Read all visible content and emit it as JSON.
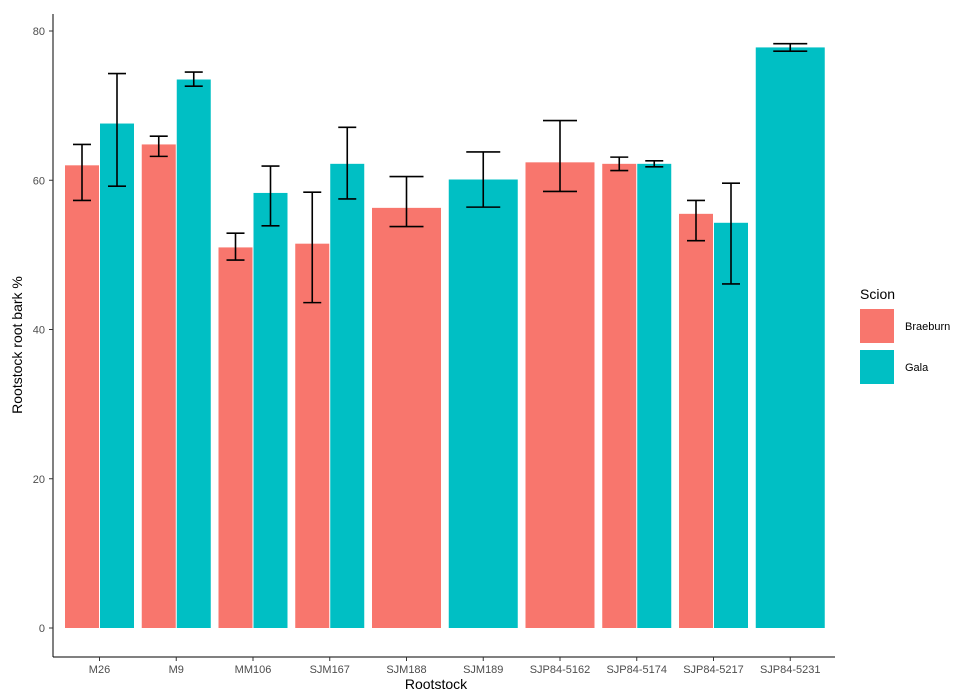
{
  "chart_data": {
    "type": "bar",
    "xlabel": "Rootstock",
    "ylabel": "Rootstock root bark %",
    "ylim": [
      0,
      80
    ],
    "yticks": [
      0,
      20,
      40,
      60,
      80
    ],
    "grid": false,
    "legend": {
      "title": "Scion",
      "position": "right"
    },
    "categories": [
      "M26",
      "M9",
      "MM106",
      "SJM167",
      "SJM188",
      "SJM189",
      "SJP84-5162",
      "SJP84-5174",
      "SJP84-5217",
      "SJP84-5231"
    ],
    "series": [
      {
        "name": "Braeburn",
        "color": "#F8766D",
        "values": [
          62.0,
          64.8,
          51.0,
          51.5,
          56.3,
          null,
          62.4,
          62.2,
          55.5,
          null
        ],
        "err_low": [
          57.3,
          63.2,
          49.3,
          43.6,
          53.8,
          null,
          58.5,
          61.3,
          51.9,
          null
        ],
        "err_high": [
          64.8,
          65.9,
          52.9,
          58.4,
          60.5,
          null,
          68.0,
          63.1,
          57.3,
          null
        ]
      },
      {
        "name": "Gala",
        "color": "#00BFC4",
        "values": [
          67.6,
          73.5,
          58.3,
          62.2,
          null,
          60.1,
          null,
          62.2,
          54.3,
          77.8
        ],
        "err_low": [
          59.2,
          72.6,
          53.9,
          57.5,
          null,
          56.4,
          null,
          61.8,
          46.1,
          77.3
        ],
        "err_high": [
          74.3,
          74.5,
          61.9,
          67.1,
          null,
          63.8,
          null,
          62.6,
          59.6,
          78.3
        ]
      }
    ]
  }
}
